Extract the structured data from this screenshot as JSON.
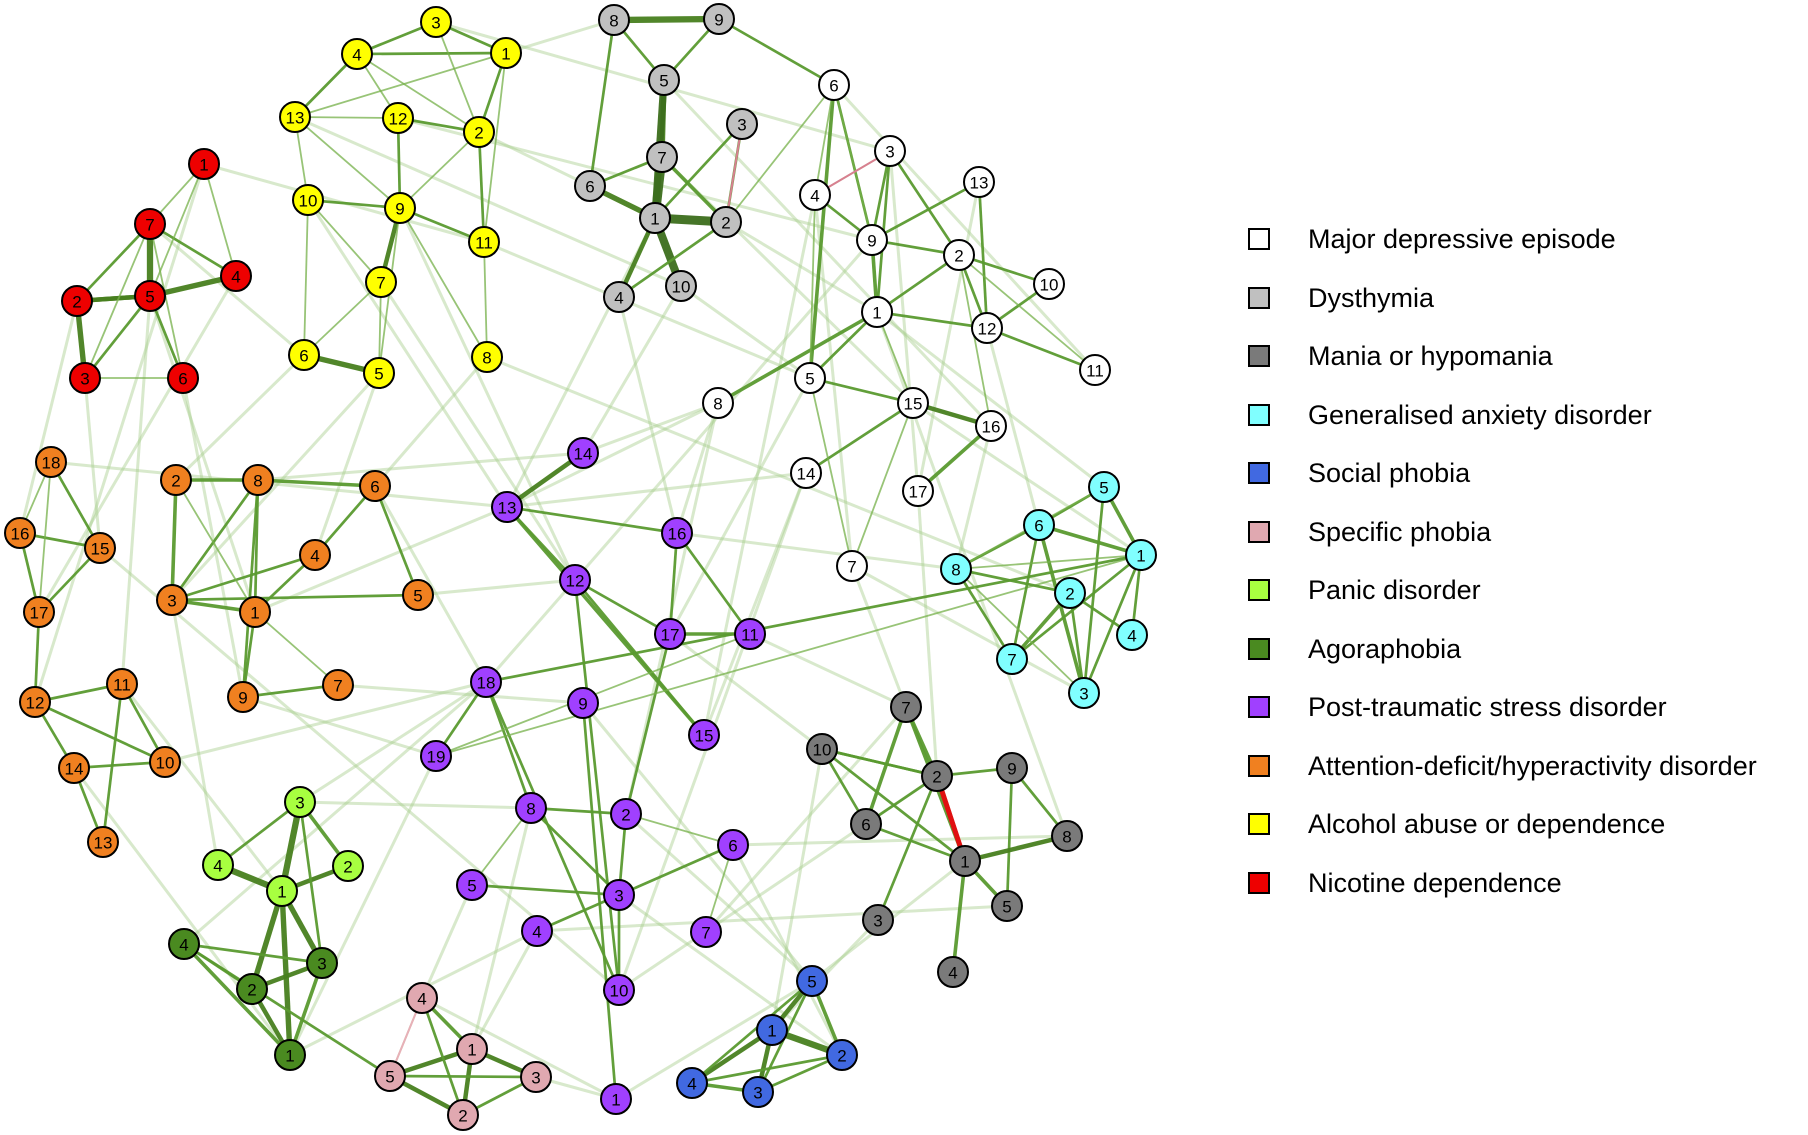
{
  "legend": {
    "items": [
      {
        "label": "Major depressive episode",
        "color": "#ffffff",
        "group": "mde"
      },
      {
        "label": "Dysthymia",
        "color": "#c0c0c0",
        "group": "dys"
      },
      {
        "label": "Mania or hypomania",
        "color": "#7a7a7a",
        "group": "man"
      },
      {
        "label": "Generalised anxiety disorder",
        "color": "#80ffff",
        "group": "gad"
      },
      {
        "label": "Social phobia",
        "color": "#4169e1",
        "group": "soc"
      },
      {
        "label": "Specific phobia",
        "color": "#e0a8b0",
        "group": "spe"
      },
      {
        "label": "Panic disorder",
        "color": "#a8ff40",
        "group": "pan"
      },
      {
        "label": "Agoraphobia",
        "color": "#4a8a20",
        "group": "ago"
      },
      {
        "label": "Post-traumatic stress disorder",
        "color": "#a040ff",
        "group": "ptsd"
      },
      {
        "label": "Attention-deficit/hyperactivity disorder",
        "color": "#f08020",
        "group": "adhd"
      },
      {
        "label": "Alcohol abuse or dependence",
        "color": "#ffff00",
        "group": "alc"
      },
      {
        "label": "Nicotine dependence",
        "color": "#ee0000",
        "group": "nic"
      }
    ]
  },
  "network": {
    "nodes": [
      {
        "group": "nic",
        "label": "1"
      },
      {
        "group": "nic",
        "label": "2"
      },
      {
        "group": "nic",
        "label": "3"
      },
      {
        "group": "nic",
        "label": "4"
      },
      {
        "group": "nic",
        "label": "5"
      },
      {
        "group": "nic",
        "label": "6"
      },
      {
        "group": "nic",
        "label": "7"
      },
      {
        "group": "alc",
        "label": "1"
      },
      {
        "group": "alc",
        "label": "2"
      },
      {
        "group": "alc",
        "label": "3"
      },
      {
        "group": "alc",
        "label": "4"
      },
      {
        "group": "alc",
        "label": "5"
      },
      {
        "group": "alc",
        "label": "6"
      },
      {
        "group": "alc",
        "label": "7"
      },
      {
        "group": "alc",
        "label": "8"
      },
      {
        "group": "alc",
        "label": "9"
      },
      {
        "group": "alc",
        "label": "10"
      },
      {
        "group": "alc",
        "label": "11"
      },
      {
        "group": "alc",
        "label": "12"
      },
      {
        "group": "alc",
        "label": "13"
      },
      {
        "group": "dys",
        "label": "1"
      },
      {
        "group": "dys",
        "label": "2"
      },
      {
        "group": "dys",
        "label": "3"
      },
      {
        "group": "dys",
        "label": "4"
      },
      {
        "group": "dys",
        "label": "5"
      },
      {
        "group": "dys",
        "label": "6"
      },
      {
        "group": "dys",
        "label": "7"
      },
      {
        "group": "dys",
        "label": "8"
      },
      {
        "group": "dys",
        "label": "9"
      },
      {
        "group": "dys",
        "label": "10"
      },
      {
        "group": "mde",
        "label": "1"
      },
      {
        "group": "mde",
        "label": "2"
      },
      {
        "group": "mde",
        "label": "3"
      },
      {
        "group": "mde",
        "label": "4"
      },
      {
        "group": "mde",
        "label": "5"
      },
      {
        "group": "mde",
        "label": "6"
      },
      {
        "group": "mde",
        "label": "7"
      },
      {
        "group": "mde",
        "label": "8"
      },
      {
        "group": "mde",
        "label": "9"
      },
      {
        "group": "mde",
        "label": "10"
      },
      {
        "group": "mde",
        "label": "11"
      },
      {
        "group": "mde",
        "label": "12"
      },
      {
        "group": "mde",
        "label": "13"
      },
      {
        "group": "mde",
        "label": "14"
      },
      {
        "group": "mde",
        "label": "15"
      },
      {
        "group": "mde",
        "label": "16"
      },
      {
        "group": "mde",
        "label": "17"
      },
      {
        "group": "adhd",
        "label": "1"
      },
      {
        "group": "adhd",
        "label": "2"
      },
      {
        "group": "adhd",
        "label": "3"
      },
      {
        "group": "adhd",
        "label": "4"
      },
      {
        "group": "adhd",
        "label": "5"
      },
      {
        "group": "adhd",
        "label": "6"
      },
      {
        "group": "adhd",
        "label": "7"
      },
      {
        "group": "adhd",
        "label": "8"
      },
      {
        "group": "adhd",
        "label": "9"
      },
      {
        "group": "adhd",
        "label": "10"
      },
      {
        "group": "adhd",
        "label": "11"
      },
      {
        "group": "adhd",
        "label": "12"
      },
      {
        "group": "adhd",
        "label": "13"
      },
      {
        "group": "adhd",
        "label": "14"
      },
      {
        "group": "adhd",
        "label": "15"
      },
      {
        "group": "adhd",
        "label": "16"
      },
      {
        "group": "adhd",
        "label": "17"
      },
      {
        "group": "adhd",
        "label": "18"
      },
      {
        "group": "ptsd",
        "label": "1"
      },
      {
        "group": "ptsd",
        "label": "2"
      },
      {
        "group": "ptsd",
        "label": "3"
      },
      {
        "group": "ptsd",
        "label": "4"
      },
      {
        "group": "ptsd",
        "label": "5"
      },
      {
        "group": "ptsd",
        "label": "6"
      },
      {
        "group": "ptsd",
        "label": "7"
      },
      {
        "group": "ptsd",
        "label": "8"
      },
      {
        "group": "ptsd",
        "label": "9"
      },
      {
        "group": "ptsd",
        "label": "10"
      },
      {
        "group": "ptsd",
        "label": "11"
      },
      {
        "group": "ptsd",
        "label": "12"
      },
      {
        "group": "ptsd",
        "label": "13"
      },
      {
        "group": "ptsd",
        "label": "14"
      },
      {
        "group": "ptsd",
        "label": "15"
      },
      {
        "group": "ptsd",
        "label": "16"
      },
      {
        "group": "ptsd",
        "label": "17"
      },
      {
        "group": "ptsd",
        "label": "18"
      },
      {
        "group": "ptsd",
        "label": "19"
      },
      {
        "group": "gad",
        "label": "1"
      },
      {
        "group": "gad",
        "label": "2"
      },
      {
        "group": "gad",
        "label": "3"
      },
      {
        "group": "gad",
        "label": "4"
      },
      {
        "group": "gad",
        "label": "5"
      },
      {
        "group": "gad",
        "label": "6"
      },
      {
        "group": "gad",
        "label": "7"
      },
      {
        "group": "gad",
        "label": "8"
      },
      {
        "group": "man",
        "label": "1"
      },
      {
        "group": "man",
        "label": "2"
      },
      {
        "group": "man",
        "label": "3"
      },
      {
        "group": "man",
        "label": "4"
      },
      {
        "group": "man",
        "label": "5"
      },
      {
        "group": "man",
        "label": "6"
      },
      {
        "group": "man",
        "label": "7"
      },
      {
        "group": "man",
        "label": "8"
      },
      {
        "group": "man",
        "label": "9"
      },
      {
        "group": "man",
        "label": "10"
      },
      {
        "group": "pan",
        "label": "1"
      },
      {
        "group": "pan",
        "label": "2"
      },
      {
        "group": "pan",
        "label": "3"
      },
      {
        "group": "pan",
        "label": "4"
      },
      {
        "group": "ago",
        "label": "1"
      },
      {
        "group": "ago",
        "label": "2"
      },
      {
        "group": "ago",
        "label": "3"
      },
      {
        "group": "ago",
        "label": "4"
      },
      {
        "group": "spe",
        "label": "1"
      },
      {
        "group": "spe",
        "label": "2"
      },
      {
        "group": "spe",
        "label": "3"
      },
      {
        "group": "spe",
        "label": "4"
      },
      {
        "group": "spe",
        "label": "5"
      },
      {
        "group": "soc",
        "label": "1"
      },
      {
        "group": "soc",
        "label": "2"
      },
      {
        "group": "soc",
        "label": "3"
      },
      {
        "group": "soc",
        "label": "4"
      },
      {
        "group": "soc",
        "label": "5"
      }
    ]
  }
}
